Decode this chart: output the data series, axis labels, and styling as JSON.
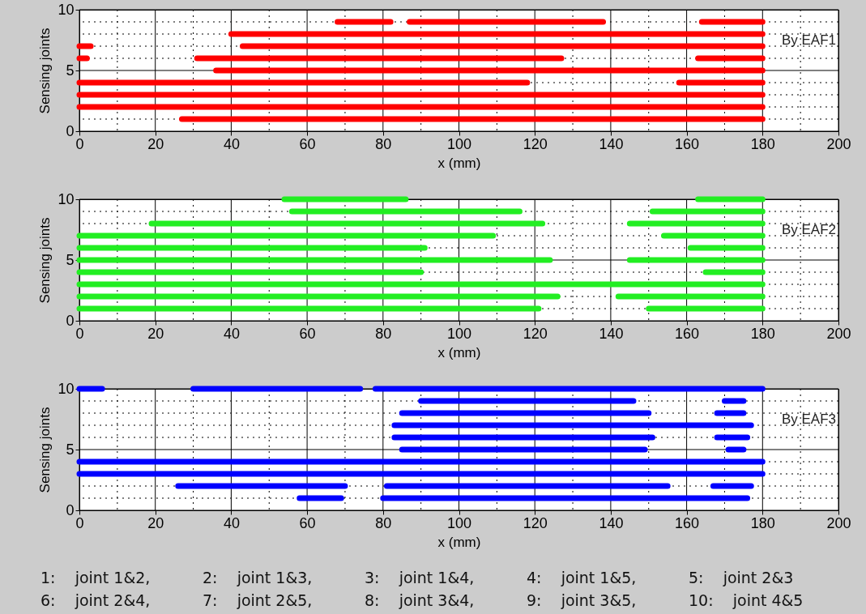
{
  "chart_data": [
    {
      "type": "line",
      "xlabel": "x (mm)",
      "ylabel": "Sensing joints",
      "xlim": [
        0,
        200
      ],
      "ylim": [
        0,
        10
      ],
      "xticks": [
        0,
        {
          "value": 10,
          "label": null
        },
        20,
        {
          "value": 30,
          "label": null
        },
        40,
        {
          "value": 50,
          "label": null
        },
        60,
        {
          "value": 70,
          "label": null
        },
        80,
        {
          "value": 90,
          "label": null
        },
        100,
        {
          "value": 110,
          "label": null
        },
        120,
        {
          "value": 130,
          "label": null
        },
        140,
        {
          "value": 150,
          "label": null
        },
        160,
        {
          "value": 170,
          "label": null
        },
        180,
        {
          "value": 190,
          "label": null
        },
        200
      ],
      "yticks": [
        0,
        {
          "value": 1,
          "label": null
        },
        {
          "value": 2,
          "label": null
        },
        {
          "value": 3,
          "label": null
        },
        {
          "value": 4,
          "label": null
        },
        5,
        {
          "value": 6,
          "label": null
        },
        {
          "value": 7,
          "label": null
        },
        {
          "value": 8,
          "label": null
        },
        {
          "value": 9,
          "label": null
        },
        10
      ],
      "grid": true,
      "line_style": "solid",
      "annotations": [
        "By EAF1"
      ],
      "series": [
        {
          "color": "#ff0000",
          "x": [
            68,
            82
          ],
          "values": [
            9,
            9
          ]
        },
        {
          "color": "#ff0000",
          "x": [
            87,
            138
          ],
          "values": [
            9,
            9
          ]
        },
        {
          "color": "#ff0000",
          "x": [
            164,
            180
          ],
          "values": [
            9,
            9
          ]
        },
        {
          "color": "#ff0000",
          "x": [
            40,
            180
          ],
          "values": [
            8,
            8
          ]
        },
        {
          "color": "#ff0000",
          "x": [
            0,
            3
          ],
          "values": [
            7,
            7
          ]
        },
        {
          "color": "#ff0000",
          "x": [
            43,
            180
          ],
          "values": [
            7,
            7
          ]
        },
        {
          "color": "#ff0000",
          "x": [
            0,
            2
          ],
          "values": [
            6,
            6
          ]
        },
        {
          "color": "#ff0000",
          "x": [
            31,
            127
          ],
          "values": [
            6,
            6
          ]
        },
        {
          "color": "#ff0000",
          "x": [
            163,
            180
          ],
          "values": [
            6,
            6
          ]
        },
        {
          "color": "#ff0000",
          "x": [
            36,
            180
          ],
          "values": [
            5,
            5
          ]
        },
        {
          "color": "#ff0000",
          "x": [
            0,
            118
          ],
          "values": [
            4,
            4
          ]
        },
        {
          "color": "#ff0000",
          "x": [
            158,
            180
          ],
          "values": [
            4,
            4
          ]
        },
        {
          "color": "#ff0000",
          "x": [
            0,
            180
          ],
          "values": [
            3,
            3
          ]
        },
        {
          "color": "#ff0000",
          "x": [
            0,
            180
          ],
          "values": [
            2,
            2
          ]
        },
        {
          "color": "#ff0000",
          "x": [
            27,
            180
          ],
          "values": [
            1,
            1
          ]
        }
      ]
    },
    {
      "type": "line",
      "xlabel": "x (mm)",
      "ylabel": "Sensing joints",
      "xlim": [
        0,
        200
      ],
      "ylim": [
        0,
        10
      ],
      "xticks": [
        0,
        {
          "value": 10,
          "label": null
        },
        20,
        {
          "value": 30,
          "label": null
        },
        40,
        {
          "value": 50,
          "label": null
        },
        60,
        {
          "value": 70,
          "label": null
        },
        80,
        {
          "value": 90,
          "label": null
        },
        100,
        {
          "value": 110,
          "label": null
        },
        120,
        {
          "value": 130,
          "label": null
        },
        140,
        {
          "value": 150,
          "label": null
        },
        160,
        {
          "value": 170,
          "label": null
        },
        180,
        {
          "value": 190,
          "label": null
        },
        200
      ],
      "yticks": [
        0,
        {
          "value": 1,
          "label": null
        },
        {
          "value": 2,
          "label": null
        },
        {
          "value": 3,
          "label": null
        },
        {
          "value": 4,
          "label": null
        },
        5,
        {
          "value": 6,
          "label": null
        },
        {
          "value": 7,
          "label": null
        },
        {
          "value": 8,
          "label": null
        },
        {
          "value": 9,
          "label": null
        },
        10
      ],
      "grid": true,
      "line_style": "solid",
      "annotations": [
        "By EAF2"
      ],
      "series": [
        {
          "color": "#22ee22",
          "x": [
            54,
            86
          ],
          "values": [
            10,
            10
          ]
        },
        {
          "color": "#22ee22",
          "x": [
            163,
            180
          ],
          "values": [
            10,
            10
          ]
        },
        {
          "color": "#22ee22",
          "x": [
            56,
            116
          ],
          "values": [
            9,
            9
          ]
        },
        {
          "color": "#22ee22",
          "x": [
            151,
            180
          ],
          "values": [
            9,
            9
          ]
        },
        {
          "color": "#22ee22",
          "x": [
            19,
            122
          ],
          "values": [
            8,
            8
          ]
        },
        {
          "color": "#22ee22",
          "x": [
            145,
            180
          ],
          "values": [
            8,
            8
          ]
        },
        {
          "color": "#22ee22",
          "x": [
            0,
            109
          ],
          "values": [
            7,
            7
          ]
        },
        {
          "color": "#22ee22",
          "x": [
            154,
            180
          ],
          "values": [
            7,
            7
          ]
        },
        {
          "color": "#22ee22",
          "x": [
            0,
            91
          ],
          "values": [
            6,
            6
          ]
        },
        {
          "color": "#22ee22",
          "x": [
            161,
            180
          ],
          "values": [
            6,
            6
          ]
        },
        {
          "color": "#22ee22",
          "x": [
            0,
            124
          ],
          "values": [
            5,
            5
          ]
        },
        {
          "color": "#22ee22",
          "x": [
            145,
            180
          ],
          "values": [
            5,
            5
          ]
        },
        {
          "color": "#22ee22",
          "x": [
            0,
            90
          ],
          "values": [
            4,
            4
          ]
        },
        {
          "color": "#22ee22",
          "x": [
            165,
            180
          ],
          "values": [
            4,
            4
          ]
        },
        {
          "color": "#22ee22",
          "x": [
            0,
            180
          ],
          "values": [
            3,
            3
          ]
        },
        {
          "color": "#22ee22",
          "x": [
            0,
            126
          ],
          "values": [
            2,
            2
          ]
        },
        {
          "color": "#22ee22",
          "x": [
            142,
            180
          ],
          "values": [
            2,
            2
          ]
        },
        {
          "color": "#22ee22",
          "x": [
            0,
            121
          ],
          "values": [
            1,
            1
          ]
        },
        {
          "color": "#22ee22",
          "x": [
            150,
            180
          ],
          "values": [
            1,
            1
          ]
        }
      ]
    },
    {
      "type": "line",
      "xlabel": "x (mm)",
      "ylabel": "Sensing joints",
      "xlim": [
        0,
        200
      ],
      "ylim": [
        0,
        10
      ],
      "xticks": [
        0,
        {
          "value": 10,
          "label": null
        },
        20,
        {
          "value": 30,
          "label": null
        },
        40,
        {
          "value": 50,
          "label": null
        },
        60,
        {
          "value": 70,
          "label": null
        },
        80,
        {
          "value": 90,
          "label": null
        },
        100,
        {
          "value": 110,
          "label": null
        },
        120,
        {
          "value": 130,
          "label": null
        },
        140,
        {
          "value": 150,
          "label": null
        },
        160,
        {
          "value": 170,
          "label": null
        },
        180,
        {
          "value": 190,
          "label": null
        },
        200
      ],
      "yticks": [
        0,
        {
          "value": 1,
          "label": null
        },
        {
          "value": 2,
          "label": null
        },
        {
          "value": 3,
          "label": null
        },
        {
          "value": 4,
          "label": null
        },
        5,
        {
          "value": 6,
          "label": null
        },
        {
          "value": 7,
          "label": null
        },
        {
          "value": 8,
          "label": null
        },
        {
          "value": 9,
          "label": null
        },
        10
      ],
      "grid": true,
      "line_style": "solid",
      "annotations": [
        "By EAF3"
      ],
      "series": [
        {
          "color": "#0000ff",
          "x": [
            0,
            6
          ],
          "values": [
            10,
            10
          ]
        },
        {
          "color": "#0000ff",
          "x": [
            30,
            74
          ],
          "values": [
            10,
            10
          ]
        },
        {
          "color": "#0000ff",
          "x": [
            78,
            180
          ],
          "values": [
            10,
            10
          ]
        },
        {
          "color": "#0000ff",
          "x": [
            90,
            146
          ],
          "values": [
            9,
            9
          ]
        },
        {
          "color": "#0000ff",
          "x": [
            170,
            175
          ],
          "values": [
            9,
            9
          ]
        },
        {
          "color": "#0000ff",
          "x": [
            85,
            150
          ],
          "values": [
            8,
            8
          ]
        },
        {
          "color": "#0000ff",
          "x": [
            168,
            175
          ],
          "values": [
            8,
            8
          ]
        },
        {
          "color": "#0000ff",
          "x": [
            83,
            177
          ],
          "values": [
            7,
            7
          ]
        },
        {
          "color": "#0000ff",
          "x": [
            83,
            151
          ],
          "values": [
            6,
            6
          ]
        },
        {
          "color": "#0000ff",
          "x": [
            168,
            176
          ],
          "values": [
            6,
            6
          ]
        },
        {
          "color": "#0000ff",
          "x": [
            85,
            149
          ],
          "values": [
            5,
            5
          ]
        },
        {
          "color": "#0000ff",
          "x": [
            171,
            175
          ],
          "values": [
            5,
            5
          ]
        },
        {
          "color": "#0000ff",
          "x": [
            0,
            180
          ],
          "values": [
            4,
            4
          ]
        },
        {
          "color": "#0000ff",
          "x": [
            0,
            180
          ],
          "values": [
            3,
            3
          ]
        },
        {
          "color": "#0000ff",
          "x": [
            26,
            70
          ],
          "values": [
            2,
            2
          ]
        },
        {
          "color": "#0000ff",
          "x": [
            81,
            155
          ],
          "values": [
            2,
            2
          ]
        },
        {
          "color": "#0000ff",
          "x": [
            167,
            177
          ],
          "values": [
            2,
            2
          ]
        },
        {
          "color": "#0000ff",
          "x": [
            58,
            69
          ],
          "values": [
            1,
            1
          ]
        },
        {
          "color": "#0000ff",
          "x": [
            80,
            176
          ],
          "values": [
            1,
            1
          ]
        }
      ]
    },
    {
      "type": "other",
      "annotations": [
        "1:    joint 1&2,",
        "2:    joint 1&3,",
        "3:    joint 1&4,",
        "4:    joint 1&5,",
        "5:    joint 2&3",
        "6:    joint 2&4,",
        "7:    joint 2&5,",
        "8:    joint 3&4,",
        "9:    joint 3&5,",
        "10:    joint 4&5"
      ]
    }
  ]
}
